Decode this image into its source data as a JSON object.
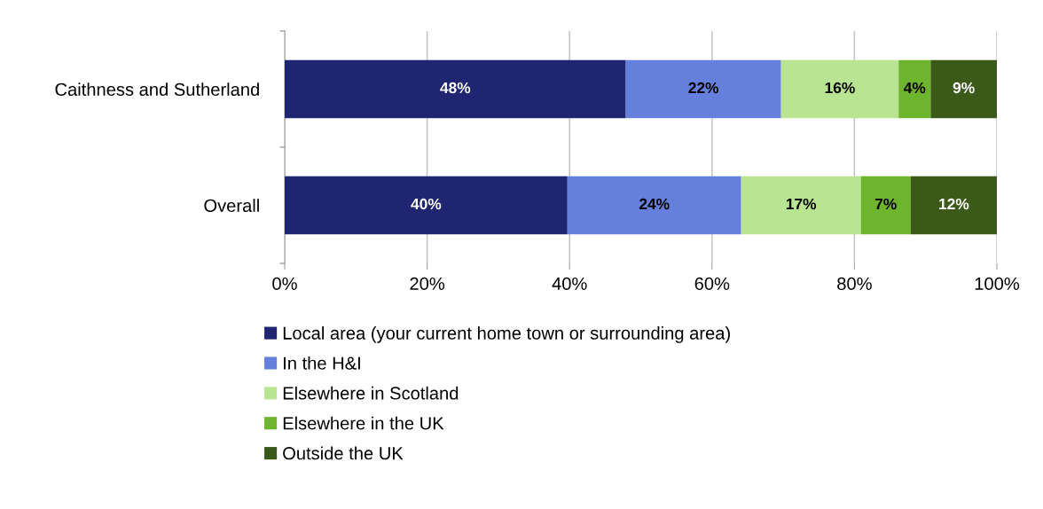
{
  "chart_data": {
    "type": "bar",
    "orientation": "horizontal",
    "stacked": true,
    "categories": [
      "Caithness and Sutherland",
      "Overall"
    ],
    "series": [
      {
        "name": "Local area (your current home town or surrounding area)",
        "color": "#1f2570",
        "values": [
          47.9,
          39.7
        ],
        "value_labels": [
          "48%",
          "40%"
        ]
      },
      {
        "name": "In the H&I",
        "color": "#6580dc",
        "values": [
          21.8,
          24.4
        ],
        "value_labels": [
          "22%",
          "24%"
        ]
      },
      {
        "name": "Elsewhere in Scotland",
        "color": "#b9e491",
        "values": [
          16.5,
          16.8
        ],
        "value_labels": [
          "16%",
          "17%"
        ]
      },
      {
        "name": "Elsewhere in the UK",
        "color": "#6db52c",
        "values": [
          4.5,
          7.0
        ],
        "value_labels": [
          "4%",
          "7%"
        ]
      },
      {
        "name": "Outside the UK",
        "color": "#3b5a1a",
        "values": [
          9.3,
          12.1
        ],
        "value_labels": [
          "9%",
          "12%"
        ]
      }
    ],
    "xlim": [
      0,
      100
    ],
    "xticks": [
      {
        "value": 0,
        "label": "0%"
      },
      {
        "value": 20,
        "label": "20%"
      },
      {
        "value": 40,
        "label": "40%"
      },
      {
        "value": 60,
        "label": "60%"
      },
      {
        "value": 80,
        "label": "80%"
      },
      {
        "value": 100,
        "label": "100%"
      }
    ],
    "grid": "x",
    "legend": "bottom"
  }
}
